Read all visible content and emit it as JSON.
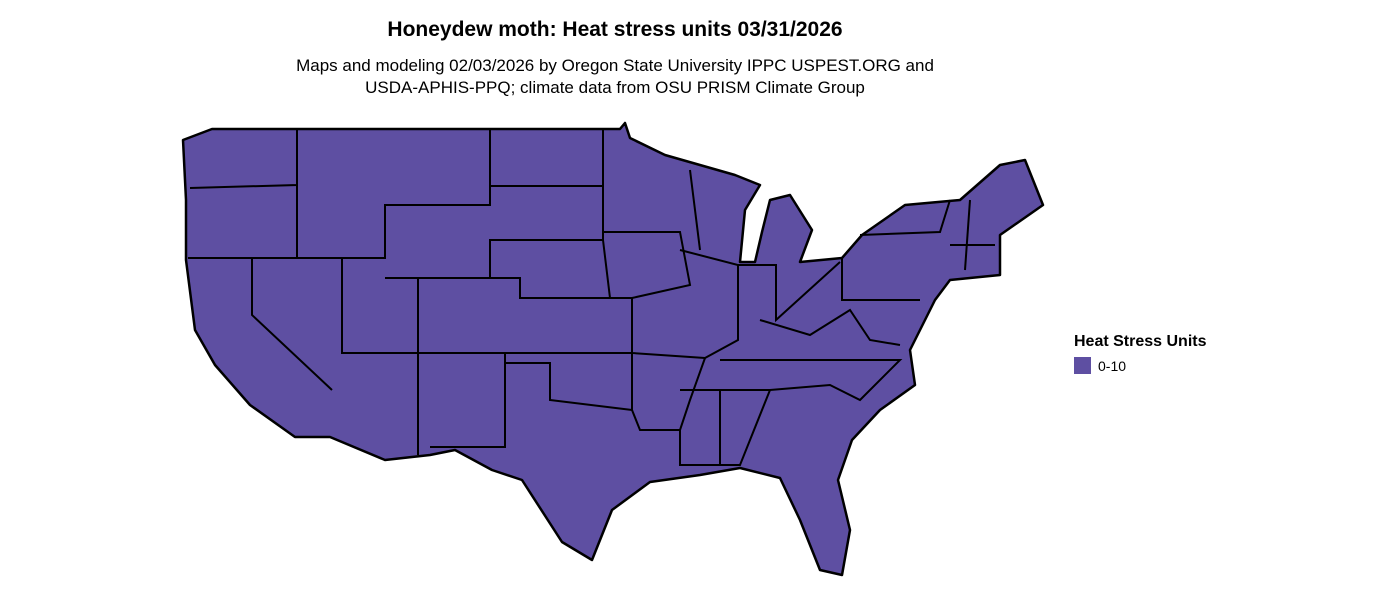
{
  "title": "Honeydew moth: Heat stress units 03/31/2026",
  "subtitle_line1": "Maps and modeling 02/03/2026 by Oregon State University IPPC USPEST.ORG and",
  "subtitle_line2": "USDA-APHIS-PPQ; climate data from OSU PRISM Climate Group",
  "map": {
    "region": "Contiguous United States",
    "fill_color": "#5e4fa2",
    "border_color": "#000000"
  },
  "legend": {
    "title": "Heat Stress Units",
    "items": [
      {
        "label": "0-10",
        "color": "#5e4fa2"
      }
    ]
  }
}
